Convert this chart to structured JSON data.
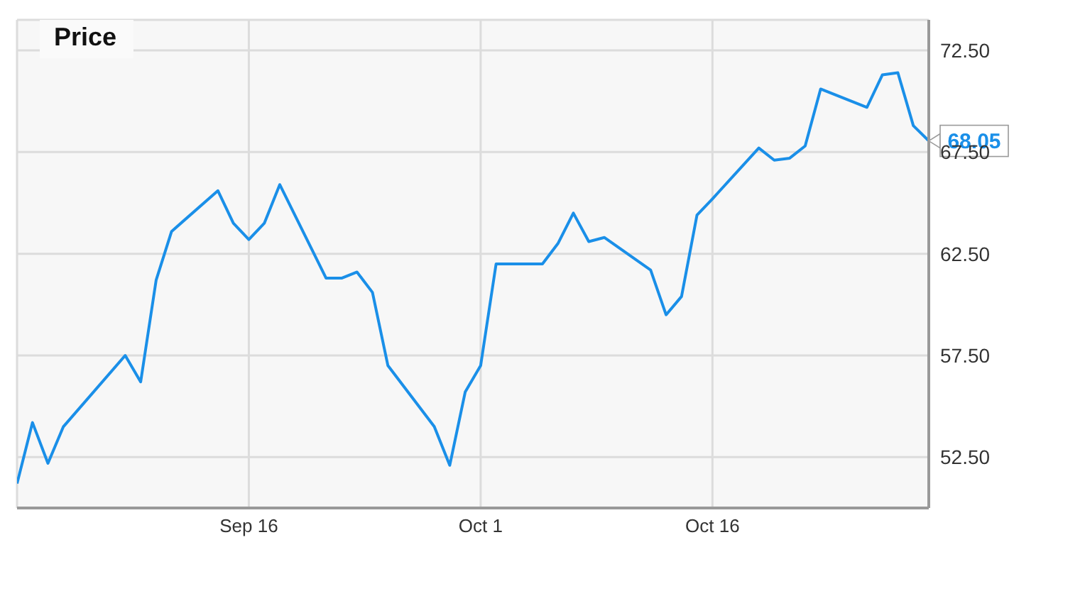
{
  "chart_data": {
    "type": "line",
    "title": "Price",
    "x": [
      "--09-01",
      "--09-02",
      "--09-03",
      "--09-04",
      "--09-08",
      "--09-09",
      "--09-10",
      "--09-11",
      "--09-14",
      "--09-15",
      "--09-16",
      "--09-17",
      "--09-18",
      "--09-21",
      "--09-22",
      "--09-23",
      "--09-24",
      "--09-25",
      "--09-28",
      "--09-29",
      "--09-30",
      "--10-01",
      "--10-02",
      "--10-05",
      "--10-06",
      "--10-07",
      "--10-08",
      "--10-09",
      "--10-12",
      "--10-13",
      "--10-14",
      "--10-15",
      "--10-16",
      "--10-19",
      "--10-20",
      "--10-21",
      "--10-22",
      "--10-23",
      "--10-26",
      "--10-27",
      "--10-28",
      "--10-29",
      "--10-30"
    ],
    "series": [
      {
        "color": "#1a8fe8",
        "values": [
          51.2,
          54.2,
          52.2,
          54.0,
          57.5,
          56.2,
          61.2,
          63.6,
          65.6,
          64.0,
          63.2,
          64.0,
          65.9,
          61.3,
          61.3,
          61.6,
          60.6,
          57.0,
          54.0,
          52.1,
          55.7,
          57.0,
          62.0,
          62.0,
          63.0,
          64.5,
          63.1,
          63.3,
          61.7,
          59.5,
          60.4,
          64.4,
          65.2,
          67.7,
          67.1,
          67.2,
          67.8,
          70.6,
          69.7,
          71.3,
          71.4,
          68.8,
          68.05
        ]
      }
    ],
    "annotations": [
      {
        "text": "68.05",
        "x": "--10-30",
        "y": 68.05
      }
    ],
    "xlim": [
      "--09-01",
      "--10-30"
    ],
    "xticks": [
      {
        "value": "--09-16",
        "label": "Sep 16"
      },
      {
        "value": "--10-01",
        "label": "Oct 1"
      },
      {
        "value": "--10-16",
        "label": "Oct 16"
      }
    ],
    "ylim": [
      50,
      74
    ],
    "yticks": [
      {
        "value": 52.5,
        "label": "52.50"
      },
      {
        "value": 57.5,
        "label": "57.50"
      },
      {
        "value": 62.5,
        "label": "62.50"
      },
      {
        "value": 67.5,
        "label": "67.50"
      },
      {
        "value": 72.5,
        "label": "72.50"
      }
    ],
    "grid": true,
    "legend": false,
    "marker": "none",
    "line_style": "solid"
  }
}
